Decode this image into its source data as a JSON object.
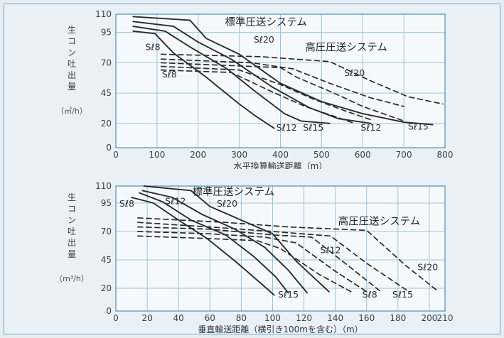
{
  "chart_data": [
    {
      "type": "line",
      "ylabel": "生コン吐出量",
      "yunit": "（㎥/h）",
      "xlabel": "水平換算輸送距離（m）",
      "xlim": [
        0,
        800
      ],
      "ylim": [
        0,
        110
      ],
      "xticks": [
        "0",
        "100",
        "200",
        "300",
        "400",
        "500",
        "600",
        "700",
        "800"
      ],
      "yticks": [
        "0",
        "20",
        "45",
        "70",
        "95",
        "110"
      ],
      "grid": true,
      "annotations": [
        {
          "text": "標準圧送システム",
          "x": 365,
          "y": 100.5,
          "kind": "title"
        },
        {
          "text": "高圧圧送システム",
          "x": 560,
          "y": 80,
          "kind": "title"
        },
        {
          "text": "Sℓ8",
          "x": 90,
          "y": 80.5,
          "kind": "label"
        },
        {
          "text": "Sℓ8",
          "x": 130,
          "y": 58,
          "kind": "label"
        },
        {
          "text": "Sℓ20",
          "x": 360,
          "y": 86.5,
          "kind": "label"
        },
        {
          "text": "Sℓ20",
          "x": 580,
          "y": 59,
          "kind": "label"
        },
        {
          "text": "Sℓ12",
          "x": 415,
          "y": 14,
          "kind": "label"
        },
        {
          "text": "Sℓ15",
          "x": 480,
          "y": 14,
          "kind": "label"
        },
        {
          "text": "Sℓ12",
          "x": 620,
          "y": 14,
          "kind": "label"
        },
        {
          "text": "Sℓ15",
          "x": 735,
          "y": 15,
          "kind": "label"
        }
      ],
      "series": [
        {
          "style": "solid",
          "points": [
            [
              42,
              108
            ],
            [
              180,
              105
            ],
            [
              220,
              90
            ],
            [
              300,
              77
            ],
            [
              400,
              53
            ],
            [
              500,
              38
            ],
            [
              600,
              28
            ],
            [
              700,
              21
            ],
            [
              770,
              19
            ]
          ]
        },
        {
          "style": "solid",
          "points": [
            [
              42,
              104
            ],
            [
              140,
              100
            ],
            [
              200,
              87
            ],
            [
              280,
              73
            ],
            [
              380,
              50
            ],
            [
              470,
              33
            ],
            [
              540,
              24
            ],
            [
              620,
              20
            ]
          ]
        },
        {
          "style": "solid",
          "points": [
            [
              42,
              100
            ],
            [
              120,
              96
            ],
            [
              180,
              83
            ],
            [
              270,
              65
            ],
            [
              340,
              46
            ],
            [
              410,
              28
            ],
            [
              450,
              22
            ],
            [
              520,
              20
            ]
          ]
        },
        {
          "style": "solid",
          "points": [
            [
              42,
              96
            ],
            [
              95,
              94
            ],
            [
              140,
              78
            ],
            [
              220,
              58
            ],
            [
              300,
              36
            ],
            [
              340,
              26
            ],
            [
              385,
              16
            ]
          ]
        },
        {
          "style": "dashed",
          "points": [
            [
              110,
              77
            ],
            [
              350,
              75
            ],
            [
              520,
              71
            ],
            [
              620,
              55
            ],
            [
              710,
              42
            ],
            [
              795,
              36
            ]
          ]
        },
        {
          "style": "dashed",
          "points": [
            [
              110,
              73
            ],
            [
              330,
              70
            ],
            [
              430,
              65
            ],
            [
              520,
              53
            ],
            [
              620,
              41
            ],
            [
              700,
              34
            ]
          ]
        },
        {
          "style": "dashed",
          "points": [
            [
              110,
              70
            ],
            [
              400,
              66
            ],
            [
              440,
              58
            ],
            [
              530,
              45
            ],
            [
              600,
              34
            ],
            [
              700,
              22
            ]
          ]
        },
        {
          "style": "dashed",
          "points": [
            [
              110,
              67
            ],
            [
              300,
              64
            ],
            [
              400,
              52
            ],
            [
              480,
              40
            ],
            [
              560,
              30
            ],
            [
              620,
              23
            ]
          ]
        },
        {
          "style": "dashed",
          "points": [
            [
              110,
              64
            ],
            [
              280,
              62
            ],
            [
              380,
              46
            ],
            [
              460,
              34
            ],
            [
              530,
              26
            ],
            [
              580,
              20
            ]
          ]
        }
      ]
    },
    {
      "type": "line",
      "ylabel": "生コン吐出量",
      "yunit": "（m³/h）",
      "xlabel": "垂直輸送距離（横引き100mを含む）（m）",
      "xlim": [
        0,
        210
      ],
      "ylim": [
        0,
        110
      ],
      "xticks": [
        "0",
        "20",
        "40",
        "60",
        "80",
        "100",
        "120",
        "140",
        "160",
        "180",
        "200",
        "210"
      ],
      "yticks": [
        "0",
        "20",
        "45",
        "70",
        "95",
        "110"
      ],
      "grid": true,
      "annotations": [
        {
          "text": "標準圧送システム",
          "x": 75,
          "y": 102,
          "kind": "title"
        },
        {
          "text": "高圧圧送システム",
          "x": 168,
          "y": 76,
          "kind": "title"
        },
        {
          "text": "Sℓ8",
          "x": 7,
          "y": 92,
          "kind": "label"
        },
        {
          "text": "Sℓ12",
          "x": 38,
          "y": 94,
          "kind": "label"
        },
        {
          "text": "Sℓ20",
          "x": 71,
          "y": 92,
          "kind": "label"
        },
        {
          "text": "Sℓ12",
          "x": 137,
          "y": 51,
          "kind": "label"
        },
        {
          "text": "Sℓ20",
          "x": 199,
          "y": 36,
          "kind": "label"
        },
        {
          "text": "Sℓ15",
          "x": 110,
          "y": 12,
          "kind": "label"
        },
        {
          "text": "Sℓ8",
          "x": 162,
          "y": 12,
          "kind": "label"
        },
        {
          "text": "Sℓ15",
          "x": 183,
          "y": 12,
          "kind": "label"
        }
      ],
      "series": [
        {
          "style": "solid",
          "points": [
            [
              18,
              110
            ],
            [
              48,
              106
            ],
            [
              60,
              92
            ],
            [
              80,
              80
            ],
            [
              100,
              68
            ],
            [
              115,
              44
            ],
            [
              136,
              17
            ]
          ]
        },
        {
          "style": "solid",
          "points": [
            [
              17,
              106
            ],
            [
              36,
              100
            ],
            [
              55,
              85
            ],
            [
              76,
              72
            ],
            [
              95,
              56
            ],
            [
              110,
              36
            ],
            [
              122,
              16
            ]
          ]
        },
        {
          "style": "solid",
          "points": [
            [
              15,
              104
            ],
            [
              30,
              96
            ],
            [
              48,
              80
            ],
            [
              70,
              67
            ],
            [
              88,
              48
            ],
            [
              102,
              30
            ],
            [
              110,
              16
            ]
          ]
        },
        {
          "style": "solid",
          "points": [
            [
              10,
              100
            ],
            [
              24,
              95
            ],
            [
              40,
              80
            ],
            [
              58,
              64
            ],
            [
              76,
              44
            ],
            [
              92,
              25
            ],
            [
              101,
              14
            ]
          ]
        },
        {
          "style": "dashed",
          "points": [
            [
              14,
              82
            ],
            [
              70,
              78
            ],
            [
              110,
              74
            ],
            [
              160,
              71
            ],
            [
              185,
              40
            ],
            [
              205,
              18
            ]
          ]
        },
        {
          "style": "dashed",
          "points": [
            [
              14,
              78
            ],
            [
              60,
              74
            ],
            [
              100,
              70
            ],
            [
              137,
              66
            ],
            [
              160,
              42
            ],
            [
              187,
              17
            ]
          ]
        },
        {
          "style": "dashed",
          "points": [
            [
              14,
              74
            ],
            [
              60,
              72
            ],
            [
              100,
              67
            ],
            [
              125,
              65
            ],
            [
              150,
              38
            ],
            [
              170,
              16
            ]
          ]
        },
        {
          "style": "dashed",
          "points": [
            [
              14,
              70
            ],
            [
              60,
              68
            ],
            [
              95,
              65
            ],
            [
              115,
              60
            ],
            [
              140,
              35
            ],
            [
              160,
              17
            ]
          ]
        },
        {
          "style": "dashed",
          "points": [
            [
              14,
              66
            ],
            [
              55,
              64
            ],
            [
              90,
              62
            ],
            [
              105,
              55
            ],
            [
              130,
              32
            ],
            [
              150,
              17
            ]
          ]
        }
      ]
    }
  ]
}
